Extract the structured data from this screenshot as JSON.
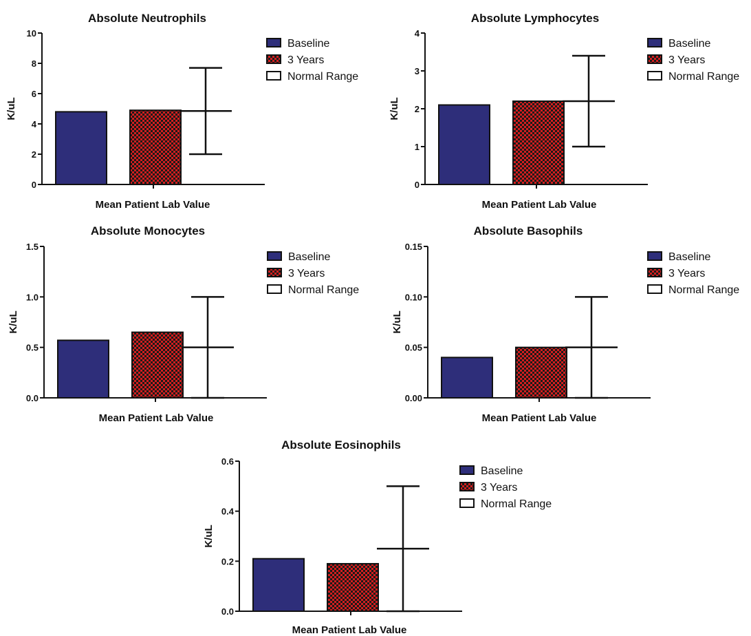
{
  "colors": {
    "baseline": "#2e2e7a",
    "three_years": "#d41e1e",
    "axis": "#111111"
  },
  "chart_data": [
    {
      "type": "bar",
      "title": "Absolute Neutrophils",
      "xlabel": "Mean Patient Lab Value",
      "ylabel": "K/uL",
      "ylim": [
        0,
        10
      ],
      "yticks": [
        "0",
        "2",
        "4",
        "6",
        "8",
        "10"
      ],
      "ytick_values": [
        0,
        2,
        4,
        6,
        8,
        10
      ],
      "series": [
        {
          "name": "Baseline",
          "values": [
            4.8
          ]
        },
        {
          "name": "3 Years",
          "values": [
            4.9
          ]
        }
      ],
      "normal_range": {
        "name": "Normal Range",
        "low": 2.0,
        "mid": 4.85,
        "high": 7.7
      },
      "legend": [
        "Baseline",
        "3 Years",
        "Normal Range"
      ],
      "legend_position": "top-right",
      "grid": false
    },
    {
      "type": "bar",
      "title": "Absolute Lymphocytes",
      "xlabel": "Mean Patient Lab Value",
      "ylabel": "K/uL",
      "ylim": [
        0,
        4
      ],
      "yticks": [
        "0",
        "1",
        "2",
        "3",
        "4"
      ],
      "ytick_values": [
        0,
        1,
        2,
        3,
        4
      ],
      "series": [
        {
          "name": "Baseline",
          "values": [
            2.1
          ]
        },
        {
          "name": "3 Years",
          "values": [
            2.2
          ]
        }
      ],
      "normal_range": {
        "name": "Normal Range",
        "low": 1.0,
        "mid": 2.2,
        "high": 3.4
      },
      "legend": [
        "Baseline",
        "3 Years",
        "Normal Range"
      ],
      "legend_position": "top-right",
      "grid": false
    },
    {
      "type": "bar",
      "title": "Absolute Monocytes",
      "xlabel": "Mean Patient Lab Value",
      "ylabel": "K/uL",
      "ylim": [
        0,
        1.5
      ],
      "yticks": [
        "0.0",
        "0.5",
        "1.0",
        "1.5"
      ],
      "ytick_values": [
        0,
        0.5,
        1.0,
        1.5
      ],
      "series": [
        {
          "name": "Baseline",
          "values": [
            0.57
          ]
        },
        {
          "name": "3 Years",
          "values": [
            0.65
          ]
        }
      ],
      "normal_range": {
        "name": "Normal Range",
        "low": 0.0,
        "mid": 0.5,
        "high": 1.0
      },
      "legend": [
        "Baseline",
        "3 Years",
        "Normal Range"
      ],
      "legend_position": "top-right",
      "grid": false
    },
    {
      "type": "bar",
      "title": "Absolute Basophils",
      "xlabel": "Mean Patient Lab Value",
      "ylabel": "K/uL",
      "ylim": [
        0,
        0.15
      ],
      "yticks": [
        "0.00",
        "0.05",
        "0.10",
        "0.15"
      ],
      "ytick_values": [
        0,
        0.05,
        0.1,
        0.15
      ],
      "series": [
        {
          "name": "Baseline",
          "values": [
            0.04
          ]
        },
        {
          "name": "3 Years",
          "values": [
            0.05
          ]
        }
      ],
      "normal_range": {
        "name": "Normal Range",
        "low": 0.0,
        "mid": 0.05,
        "high": 0.1
      },
      "legend": [
        "Baseline",
        "3 Years",
        "Normal Range"
      ],
      "legend_position": "top-right",
      "grid": false
    },
    {
      "type": "bar",
      "title": "Absolute Eosinophils",
      "xlabel": "Mean Patient Lab Value",
      "ylabel": "K/uL",
      "ylim": [
        0,
        0.6
      ],
      "yticks": [
        "0.0",
        "0.2",
        "0.4",
        "0.6"
      ],
      "ytick_values": [
        0,
        0.2,
        0.4,
        0.6
      ],
      "series": [
        {
          "name": "Baseline",
          "values": [
            0.21
          ]
        },
        {
          "name": "3 Years",
          "values": [
            0.19
          ]
        }
      ],
      "normal_range": {
        "name": "Normal Range",
        "low": 0.0,
        "mid": 0.25,
        "high": 0.5
      },
      "legend": [
        "Baseline",
        "3 Years",
        "Normal Range"
      ],
      "legend_position": "top-right",
      "grid": false
    }
  ]
}
